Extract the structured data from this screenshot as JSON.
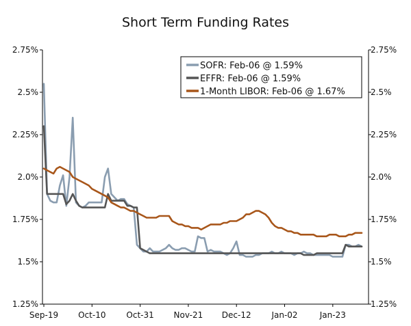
{
  "chart_data": {
    "type": "line",
    "title": "Short Term Funding Rates",
    "xlabel": "",
    "ylabel": "",
    "ylim": [
      1.25,
      2.75
    ],
    "y_ticks": [
      {
        "value": 2.75,
        "label": "2.75%"
      },
      {
        "value": 2.5,
        "label": "2.5%"
      },
      {
        "value": 2.25,
        "label": "2.25%"
      },
      {
        "value": 2.0,
        "label": "2.0%"
      },
      {
        "value": 1.75,
        "label": "1.75%"
      },
      {
        "value": 1.5,
        "label": "1.5%"
      },
      {
        "value": 1.25,
        "label": "1.25%"
      }
    ],
    "x_count": 100,
    "x_ticks": [
      {
        "index": 0,
        "label": "Sep-19"
      },
      {
        "index": 15,
        "label": "Oct-10"
      },
      {
        "index": 30,
        "label": "Oct-31"
      },
      {
        "index": 45,
        "label": "Nov-21"
      },
      {
        "index": 60,
        "label": "Dec-12"
      },
      {
        "index": 75,
        "label": "Jan-02"
      },
      {
        "index": 90,
        "label": "Jan-23"
      }
    ],
    "legend_position": "top-right",
    "series": [
      {
        "name": "SOFR",
        "legend": "SOFR: Feb-06 @ 1.59%",
        "color": "#8a9db0",
        "points": [
          [
            0,
            2.55
          ],
          [
            1,
            1.9
          ],
          [
            2,
            1.86
          ],
          [
            3,
            1.85
          ],
          [
            4,
            1.85
          ],
          [
            5,
            1.95
          ],
          [
            6,
            2.01
          ],
          [
            7,
            1.83
          ],
          [
            8,
            2.0
          ],
          [
            9,
            2.35
          ],
          [
            10,
            1.85
          ],
          [
            11,
            1.83
          ],
          [
            12,
            1.82
          ],
          [
            13,
            1.83
          ],
          [
            14,
            1.85
          ],
          [
            15,
            1.85
          ],
          [
            16,
            1.85
          ],
          [
            17,
            1.85
          ],
          [
            18,
            1.85
          ],
          [
            19,
            2.0
          ],
          [
            20,
            2.05
          ],
          [
            21,
            1.9
          ],
          [
            22,
            1.88
          ],
          [
            23,
            1.86
          ],
          [
            24,
            1.87
          ],
          [
            25,
            1.87
          ],
          [
            26,
            1.84
          ],
          [
            27,
            1.83
          ],
          [
            28,
            1.82
          ],
          [
            29,
            1.6
          ],
          [
            30,
            1.58
          ],
          [
            31,
            1.56
          ],
          [
            32,
            1.56
          ],
          [
            33,
            1.58
          ],
          [
            34,
            1.56
          ],
          [
            35,
            1.56
          ],
          [
            36,
            1.56
          ],
          [
            37,
            1.57
          ],
          [
            38,
            1.58
          ],
          [
            39,
            1.6
          ],
          [
            40,
            1.58
          ],
          [
            41,
            1.57
          ],
          [
            42,
            1.57
          ],
          [
            43,
            1.58
          ],
          [
            44,
            1.58
          ],
          [
            45,
            1.57
          ],
          [
            46,
            1.56
          ],
          [
            47,
            1.56
          ],
          [
            48,
            1.65
          ],
          [
            49,
            1.64
          ],
          [
            50,
            1.64
          ],
          [
            51,
            1.56
          ],
          [
            52,
            1.57
          ],
          [
            53,
            1.56
          ],
          [
            54,
            1.56
          ],
          [
            55,
            1.56
          ],
          [
            56,
            1.55
          ],
          [
            57,
            1.54
          ],
          [
            58,
            1.55
          ],
          [
            59,
            1.58
          ],
          [
            60,
            1.62
          ],
          [
            61,
            1.54
          ],
          [
            62,
            1.54
          ],
          [
            63,
            1.53
          ],
          [
            64,
            1.53
          ],
          [
            65,
            1.53
          ],
          [
            66,
            1.54
          ],
          [
            67,
            1.54
          ],
          [
            68,
            1.55
          ],
          [
            69,
            1.55
          ],
          [
            70,
            1.55
          ],
          [
            71,
            1.56
          ],
          [
            72,
            1.55
          ],
          [
            73,
            1.55
          ],
          [
            74,
            1.56
          ],
          [
            75,
            1.55
          ],
          [
            76,
            1.55
          ],
          [
            77,
            1.55
          ],
          [
            78,
            1.54
          ],
          [
            79,
            1.55
          ],
          [
            80,
            1.55
          ],
          [
            81,
            1.56
          ],
          [
            82,
            1.55
          ],
          [
            83,
            1.55
          ],
          [
            84,
            1.54
          ],
          [
            85,
            1.54
          ],
          [
            86,
            1.54
          ],
          [
            87,
            1.54
          ],
          [
            88,
            1.54
          ],
          [
            89,
            1.54
          ],
          [
            90,
            1.53
          ],
          [
            91,
            1.53
          ],
          [
            92,
            1.53
          ],
          [
            93,
            1.53
          ],
          [
            94,
            1.6
          ],
          [
            95,
            1.6
          ],
          [
            96,
            1.59
          ],
          [
            97,
            1.59
          ],
          [
            98,
            1.6
          ],
          [
            99,
            1.59
          ]
        ]
      },
      {
        "name": "EFFR",
        "legend": "EFFR: Feb-06 @ 1.59%",
        "color": "#555555",
        "points": [
          [
            0,
            2.3
          ],
          [
            1,
            1.9
          ],
          [
            2,
            1.9
          ],
          [
            3,
            1.9
          ],
          [
            4,
            1.9
          ],
          [
            5,
            1.9
          ],
          [
            6,
            1.9
          ],
          [
            7,
            1.84
          ],
          [
            8,
            1.86
          ],
          [
            9,
            1.9
          ],
          [
            10,
            1.86
          ],
          [
            11,
            1.83
          ],
          [
            12,
            1.82
          ],
          [
            13,
            1.82
          ],
          [
            14,
            1.82
          ],
          [
            15,
            1.82
          ],
          [
            16,
            1.82
          ],
          [
            17,
            1.82
          ],
          [
            18,
            1.82
          ],
          [
            19,
            1.82
          ],
          [
            20,
            1.9
          ],
          [
            21,
            1.86
          ],
          [
            22,
            1.86
          ],
          [
            23,
            1.86
          ],
          [
            24,
            1.86
          ],
          [
            25,
            1.86
          ],
          [
            26,
            1.83
          ],
          [
            27,
            1.83
          ],
          [
            28,
            1.82
          ],
          [
            29,
            1.82
          ],
          [
            30,
            1.58
          ],
          [
            31,
            1.57
          ],
          [
            32,
            1.56
          ],
          [
            33,
            1.55
          ],
          [
            34,
            1.55
          ],
          [
            35,
            1.55
          ],
          [
            40,
            1.55
          ],
          [
            50,
            1.55
          ],
          [
            60,
            1.55
          ],
          [
            70,
            1.55
          ],
          [
            80,
            1.55
          ],
          [
            81,
            1.54
          ],
          [
            84,
            1.54
          ],
          [
            85,
            1.55
          ],
          [
            90,
            1.55
          ],
          [
            93,
            1.55
          ],
          [
            94,
            1.6
          ],
          [
            95,
            1.59
          ],
          [
            99,
            1.59
          ]
        ]
      },
      {
        "name": "1-Month LIBOR",
        "legend": "1-Month LIBOR: Feb-06 @ 1.67%",
        "color": "#a8561a",
        "points": [
          [
            0,
            2.05
          ],
          [
            1,
            2.04
          ],
          [
            2,
            2.03
          ],
          [
            3,
            2.02
          ],
          [
            4,
            2.05
          ],
          [
            5,
            2.06
          ],
          [
            6,
            2.05
          ],
          [
            7,
            2.04
          ],
          [
            8,
            2.03
          ],
          [
            9,
            2.0
          ],
          [
            10,
            1.99
          ],
          [
            11,
            1.98
          ],
          [
            12,
            1.97
          ],
          [
            13,
            1.96
          ],
          [
            14,
            1.95
          ],
          [
            15,
            1.93
          ],
          [
            16,
            1.92
          ],
          [
            17,
            1.91
          ],
          [
            18,
            1.9
          ],
          [
            19,
            1.89
          ],
          [
            20,
            1.88
          ],
          [
            21,
            1.85
          ],
          [
            22,
            1.84
          ],
          [
            23,
            1.83
          ],
          [
            24,
            1.82
          ],
          [
            25,
            1.82
          ],
          [
            26,
            1.81
          ],
          [
            27,
            1.8
          ],
          [
            28,
            1.8
          ],
          [
            29,
            1.79
          ],
          [
            30,
            1.78
          ],
          [
            31,
            1.77
          ],
          [
            32,
            1.76
          ],
          [
            33,
            1.76
          ],
          [
            34,
            1.76
          ],
          [
            35,
            1.76
          ],
          [
            36,
            1.77
          ],
          [
            37,
            1.77
          ],
          [
            38,
            1.77
          ],
          [
            39,
            1.77
          ],
          [
            40,
            1.74
          ],
          [
            41,
            1.73
          ],
          [
            42,
            1.72
          ],
          [
            43,
            1.72
          ],
          [
            44,
            1.71
          ],
          [
            45,
            1.71
          ],
          [
            46,
            1.7
          ],
          [
            47,
            1.7
          ],
          [
            48,
            1.7
          ],
          [
            49,
            1.69
          ],
          [
            50,
            1.7
          ],
          [
            51,
            1.71
          ],
          [
            52,
            1.72
          ],
          [
            53,
            1.72
          ],
          [
            54,
            1.72
          ],
          [
            55,
            1.72
          ],
          [
            56,
            1.73
          ],
          [
            57,
            1.73
          ],
          [
            58,
            1.74
          ],
          [
            59,
            1.74
          ],
          [
            60,
            1.74
          ],
          [
            61,
            1.75
          ],
          [
            62,
            1.76
          ],
          [
            63,
            1.78
          ],
          [
            64,
            1.78
          ],
          [
            65,
            1.79
          ],
          [
            66,
            1.8
          ],
          [
            67,
            1.8
          ],
          [
            68,
            1.79
          ],
          [
            69,
            1.78
          ],
          [
            70,
            1.76
          ],
          [
            71,
            1.73
          ],
          [
            72,
            1.71
          ],
          [
            73,
            1.7
          ],
          [
            74,
            1.7
          ],
          [
            75,
            1.69
          ],
          [
            76,
            1.68
          ],
          [
            77,
            1.68
          ],
          [
            78,
            1.67
          ],
          [
            79,
            1.67
          ],
          [
            80,
            1.66
          ],
          [
            81,
            1.66
          ],
          [
            82,
            1.66
          ],
          [
            83,
            1.66
          ],
          [
            84,
            1.66
          ],
          [
            85,
            1.65
          ],
          [
            86,
            1.65
          ],
          [
            87,
            1.65
          ],
          [
            88,
            1.65
          ],
          [
            89,
            1.66
          ],
          [
            90,
            1.66
          ],
          [
            91,
            1.66
          ],
          [
            92,
            1.65
          ],
          [
            93,
            1.65
          ],
          [
            94,
            1.65
          ],
          [
            95,
            1.66
          ],
          [
            96,
            1.66
          ],
          [
            97,
            1.67
          ],
          [
            98,
            1.67
          ],
          [
            99,
            1.67
          ]
        ]
      }
    ]
  }
}
